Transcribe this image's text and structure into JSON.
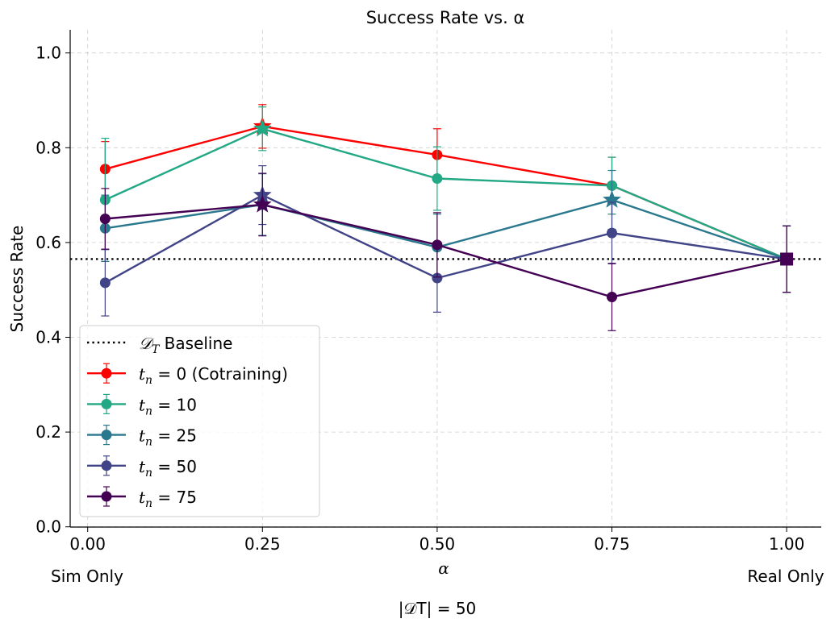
{
  "chart_data": {
    "type": "line",
    "title": "Success Rate vs. α",
    "xlabel": "α",
    "ylabel": "Success Rate",
    "footnote": "|𝒟T| = 50",
    "x_extra_labels": {
      "left": "Sim Only",
      "right": "Real Only"
    },
    "xlim": [
      -0.025,
      1.05
    ],
    "ylim": [
      0.0,
      1.05
    ],
    "x_ticks": [
      0.0,
      0.25,
      0.5,
      0.75,
      1.0
    ],
    "x_tick_labels": [
      "0.00",
      "0.25",
      "0.50",
      "0.75",
      "1.00"
    ],
    "y_ticks": [
      0.0,
      0.2,
      0.4,
      0.6,
      0.8,
      1.0
    ],
    "y_tick_labels": [
      "0.0",
      "0.2",
      "0.4",
      "0.6",
      "0.8",
      "1.0"
    ],
    "grid": true,
    "legend_position": "lower-left",
    "baseline": {
      "name": "𝒟T Baseline",
      "value": 0.565,
      "color": "#000000",
      "style": "dotted"
    },
    "x": [
      0.025,
      0.25,
      0.5,
      0.75,
      1.0
    ],
    "series": [
      {
        "name": "tn = 0 (Cotraining)",
        "legend_sub": "n",
        "legend_prefix": "t",
        "legend_rest": " = 0 (Cotraining)",
        "color": "#ff0000",
        "values": [
          0.755,
          0.845,
          0.785,
          0.72,
          0.565
        ],
        "errors": [
          0.058,
          0.046,
          0.055,
          0.06,
          0.07
        ],
        "best_index": 1
      },
      {
        "name": "tn = 10",
        "legend_sub": "n",
        "legend_prefix": "t",
        "legend_rest": " = 10",
        "color": "#22a884",
        "values": [
          0.69,
          0.84,
          0.735,
          0.72,
          0.565
        ],
        "errors": [
          0.13,
          0.046,
          0.067,
          0.06,
          0.07
        ],
        "best_index": 1
      },
      {
        "name": "tn = 25",
        "legend_sub": "n",
        "legend_prefix": "t",
        "legend_rest": " = 25",
        "color": "#2a788e",
        "values": [
          0.63,
          0.68,
          0.59,
          0.69,
          0.565
        ],
        "errors": [
          0.07,
          0.065,
          0.07,
          0.062,
          0.07
        ],
        "best_index": 3
      },
      {
        "name": "tn = 50",
        "legend_sub": "n",
        "legend_prefix": "t",
        "legend_rest": " = 50",
        "color": "#414487",
        "values": [
          0.515,
          0.7,
          0.525,
          0.62,
          0.565
        ],
        "errors": [
          0.07,
          0.062,
          0.072,
          0.065,
          0.07
        ],
        "best_index": 1
      },
      {
        "name": "tn = 75",
        "legend_sub": "n",
        "legend_prefix": "t",
        "legend_rest": " = 75",
        "color": "#440154",
        "values": [
          0.65,
          0.68,
          0.595,
          0.485,
          0.565
        ],
        "errors": [
          0.064,
          0.066,
          0.068,
          0.071,
          0.07
        ],
        "best_index": 1
      }
    ]
  }
}
